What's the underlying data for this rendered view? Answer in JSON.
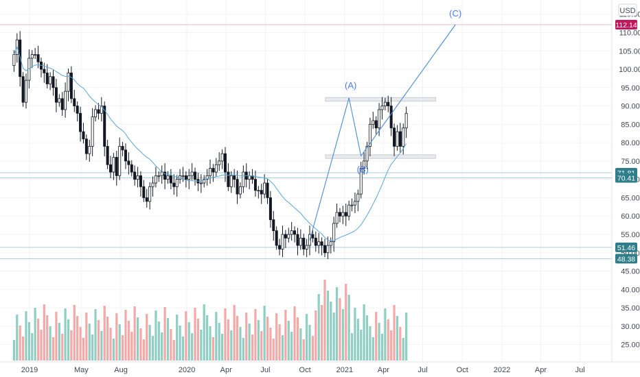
{
  "chart_data": {
    "type": "candlestick",
    "currency": "USD",
    "y_axis": {
      "range": [
        22.5,
        117
      ],
      "ticks": [
        "25.00",
        "30.00",
        "35.00",
        "40.00",
        "45.00",
        "50.00",
        "55.00",
        "60.00",
        "65.00",
        "70.00",
        "75.00",
        "80.00",
        "85.00",
        "90.00",
        "95.00",
        "100.00",
        "105.00",
        "110.00",
        "115.00"
      ]
    },
    "x_axis": {
      "labels": [
        "2019",
        "May",
        "Aug",
        "2020",
        "Apr",
        "Jul",
        "Oct",
        "2021",
        "Apr",
        "Jul",
        "Oct",
        "2022",
        "Apr",
        "Jul"
      ],
      "label_dates": [
        "2019-01-01",
        "2019-05-01",
        "2019-08-01",
        "2020-01-01",
        "2020-04-01",
        "2020-07-01",
        "2020-10-01",
        "2021-01-01",
        "2021-04-01",
        "2021-07-01",
        "2021-10-01",
        "2022-01-01",
        "2022-04-01",
        "2022-07-01"
      ]
    },
    "candle_interval": "1W",
    "start_date": "2018-11-26",
    "ohlc_close": [
      104,
      108,
      98,
      91,
      97,
      103,
      104,
      104,
      102,
      100,
      99,
      96,
      98,
      95,
      91,
      92,
      89,
      94,
      99,
      92,
      90,
      88,
      83,
      81,
      77,
      79,
      87,
      89,
      88,
      90,
      79,
      74,
      72,
      76,
      71,
      79,
      78,
      75,
      74,
      72,
      70,
      71,
      68,
      65,
      64,
      68,
      69,
      71,
      71,
      72,
      70,
      71,
      69,
      68,
      70,
      71,
      71,
      70,
      71,
      72,
      70,
      69,
      69,
      70,
      71,
      73,
      72,
      74,
      75,
      77,
      72,
      68,
      71,
      70,
      66,
      68,
      72,
      70,
      71,
      70,
      67,
      67,
      66,
      69,
      65,
      59,
      56,
      52,
      51,
      55,
      54,
      55,
      56,
      55,
      52,
      54,
      51,
      52,
      55,
      54,
      52,
      53,
      52,
      50,
      52,
      53,
      58,
      61,
      60,
      61,
      60,
      63,
      63,
      64,
      66,
      73,
      75,
      79,
      85,
      86,
      84,
      89,
      90,
      91,
      90,
      84,
      79,
      83,
      79,
      84,
      88
    ],
    "moving_average": "smooth ~20-period SMA of close (blue line)",
    "volume_axis": "overlay in lower region (unlabeled scale), teal = up week, salmon = down week",
    "horizontal_levels": [
      {
        "label": "112.14",
        "value": 112.14,
        "color": "#c2185b",
        "line": "#e8b4c8"
      },
      {
        "label": "71.81",
        "value": 71.81,
        "color": "#2f7e8a",
        "line": "#a9cfd6"
      },
      {
        "label": "70.41",
        "value": 70.41,
        "color": "#2f7e8a",
        "line": "#a9cfd6"
      },
      {
        "label": "51.46",
        "value": 51.46,
        "color": "#2f7e8a",
        "line": "#a9cfd6"
      },
      {
        "label": "48.38",
        "value": 48.38,
        "color": "#2f7e8a",
        "line": "#a9cfd6"
      }
    ],
    "zones": [
      {
        "name": "top-zone",
        "from": "2021-01-01",
        "to": "2021-07-31",
        "low": 91.3,
        "high": 92.3
      },
      {
        "name": "bottom-zone",
        "from": "2021-01-01",
        "to": "2021-07-31",
        "low": 75.7,
        "high": 76.7
      }
    ],
    "wave_labels": [
      {
        "text": "(A)",
        "date": "2021-01-15",
        "value": 92.5
      },
      {
        "text": "(B)",
        "date": "2021-02-12",
        "value": 76
      },
      {
        "text": "(C)",
        "date": "2021-09-15",
        "value": 112.14
      }
    ],
    "wave_path": [
      {
        "date": "2020-10-12",
        "value": 53.4
      },
      {
        "date": "2021-01-11",
        "value": 92.2
      },
      {
        "date": "2021-02-08",
        "value": 76.4
      },
      {
        "date": "2021-09-15",
        "value": 112.14
      }
    ]
  }
}
